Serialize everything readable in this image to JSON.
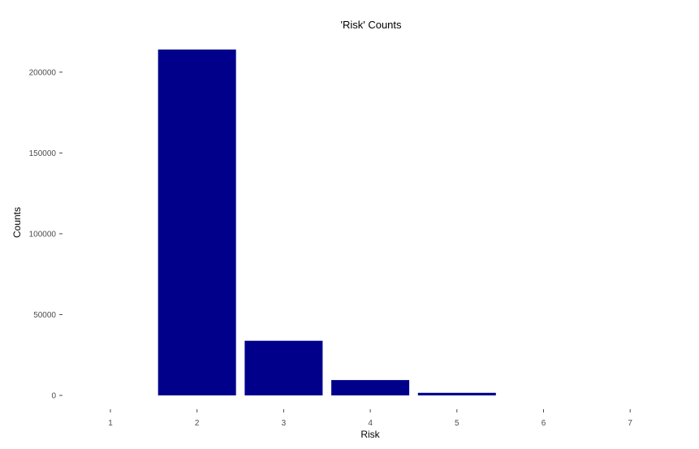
{
  "chart_data": {
    "type": "bar",
    "title": "'Risk' Counts",
    "xlabel": "Risk",
    "ylabel": "Counts",
    "categories": [
      "1",
      "2",
      "3",
      "4",
      "5",
      "6",
      "7"
    ],
    "values": [
      0,
      214000,
      33800,
      9500,
      1600,
      0,
      0
    ],
    "yticks": [
      0,
      50000,
      100000,
      150000,
      200000
    ],
    "ytick_labels": [
      "0",
      "50000",
      "100000",
      "150000",
      "200000"
    ],
    "ylim": [
      0,
      214000
    ],
    "grid": false,
    "bar_color": "#00008B"
  }
}
